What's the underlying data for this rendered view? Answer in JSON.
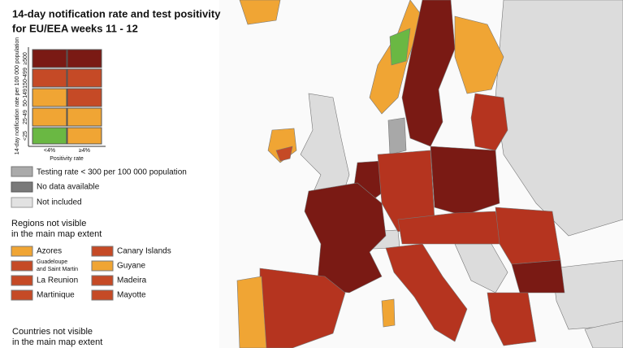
{
  "header": {
    "title_line1": "14-day notification rate and test positivity",
    "title_line2": "for EU/EEA weeks 11 - 12"
  },
  "matrix": {
    "y_axis_label": "14-day notification rate per 100 000 population",
    "x_axis_label": "Positivity rate",
    "rows": [
      "≥500",
      "150-499",
      "50-149",
      "25-49",
      "<25"
    ],
    "columns": [
      "<4%",
      "≥4%"
    ]
  },
  "legend": [
    "Testing rate < 300 per 100 000 population",
    "No data available",
    "Not included"
  ],
  "regions": {
    "title_line1": "Regions not visible",
    "title_line2": "in the main map extent",
    "items": [
      "Azores",
      "Guadeloupe",
      "and Saint Martin",
      "La Reunion",
      "Martinique",
      "Canary Islands",
      "Guyane",
      "Madeira",
      "Mayotte"
    ]
  },
  "countries": {
    "title_line1": "Countries not visible",
    "title_line2": "in the main map extent"
  }
}
